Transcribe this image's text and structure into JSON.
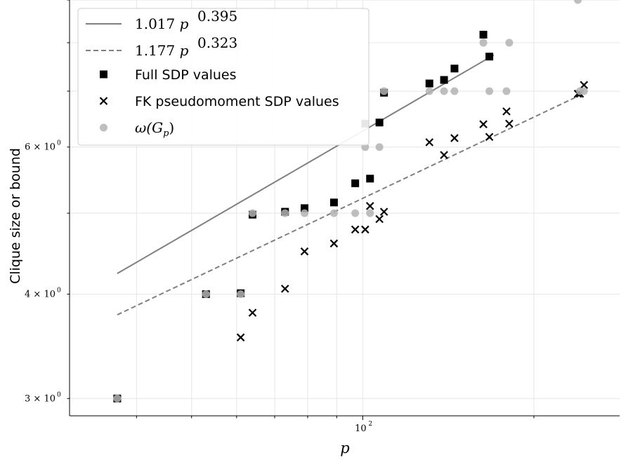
{
  "chart_data": {
    "type": "scatter",
    "xlabel": "p",
    "ylabel": "Clique size or bound",
    "x_scale": "log",
    "y_scale": "log",
    "xlim": [
      30.5,
      283
    ],
    "ylim": [
      2.86,
      9.0
    ],
    "grid": true,
    "legend_placement": "top-left",
    "x_ticks_major": [
      {
        "value": 100,
        "base": "10",
        "exp": "2"
      }
    ],
    "y_ticks_labeled": [
      {
        "value": 3,
        "coef": "3",
        "base": "10",
        "exp": "0"
      },
      {
        "value": 4,
        "coef": "4",
        "base": "10",
        "exp": "0"
      },
      {
        "value": 6,
        "coef": "6",
        "base": "10",
        "exp": "0"
      }
    ],
    "series": [
      {
        "name": "1.017 p^0.395",
        "legend_label": {
          "coef": "1.017",
          "var": "p",
          "exp": "0.395"
        },
        "kind": "line",
        "style": "solid",
        "color": "#808080",
        "a": 1.017,
        "b": 0.395,
        "x_range": [
          37,
          170
        ]
      },
      {
        "name": "1.177 p^0.323",
        "legend_label": {
          "coef": "1.177",
          "var": "p",
          "exp": "0.323"
        },
        "kind": "line",
        "style": "dashed",
        "color": "#808080",
        "a": 1.177,
        "b": 0.323,
        "x_range": [
          37,
          245
        ]
      },
      {
        "name": "Full SDP values",
        "legend_label": "Full SDP values",
        "kind": "marker",
        "marker": "square",
        "color": "#000000",
        "points": [
          {
            "x": 37,
            "y": 3.0
          },
          {
            "x": 53,
            "y": 4.0
          },
          {
            "x": 61,
            "y": 4.01
          },
          {
            "x": 64,
            "y": 4.98
          },
          {
            "x": 73,
            "y": 5.02
          },
          {
            "x": 79,
            "y": 5.07
          },
          {
            "x": 89,
            "y": 5.15
          },
          {
            "x": 97,
            "y": 5.43
          },
          {
            "x": 101,
            "y": 6.4
          },
          {
            "x": 103,
            "y": 5.5
          },
          {
            "x": 107,
            "y": 6.42
          },
          {
            "x": 109,
            "y": 6.97
          },
          {
            "x": 131,
            "y": 7.15
          },
          {
            "x": 139,
            "y": 7.22
          },
          {
            "x": 145,
            "y": 7.45
          },
          {
            "x": 163,
            "y": 8.18
          },
          {
            "x": 167,
            "y": 7.7
          }
        ]
      },
      {
        "name": "FK pseudomoment SDP values",
        "legend_label": "FK pseudomoment SDP values",
        "kind": "marker",
        "marker": "cross",
        "color": "#000000",
        "points": [
          {
            "x": 61,
            "y": 3.55
          },
          {
            "x": 64,
            "y": 3.8
          },
          {
            "x": 73,
            "y": 4.06
          },
          {
            "x": 79,
            "y": 4.5
          },
          {
            "x": 89,
            "y": 4.6
          },
          {
            "x": 97,
            "y": 4.78
          },
          {
            "x": 101,
            "y": 4.78
          },
          {
            "x": 103,
            "y": 5.1
          },
          {
            "x": 107,
            "y": 4.92
          },
          {
            "x": 109,
            "y": 5.02
          },
          {
            "x": 131,
            "y": 6.08
          },
          {
            "x": 139,
            "y": 5.87
          },
          {
            "x": 145,
            "y": 6.15
          },
          {
            "x": 163,
            "y": 6.39
          },
          {
            "x": 167,
            "y": 6.17
          },
          {
            "x": 179,
            "y": 6.62
          },
          {
            "x": 181,
            "y": 6.4
          },
          {
            "x": 239,
            "y": 6.95
          },
          {
            "x": 241,
            "y": 6.95
          },
          {
            "x": 245,
            "y": 7.12
          }
        ]
      },
      {
        "name": "ω(G_p)",
        "legend_label": {
          "base": "ω(G",
          "sub": "p",
          "tail": ")"
        },
        "kind": "marker",
        "marker": "circle",
        "color": "#b3b3b3",
        "points": [
          {
            "x": 37,
            "y": 3
          },
          {
            "x": 53,
            "y": 4
          },
          {
            "x": 61,
            "y": 4
          },
          {
            "x": 64,
            "y": 5
          },
          {
            "x": 73,
            "y": 5
          },
          {
            "x": 79,
            "y": 5
          },
          {
            "x": 89,
            "y": 5
          },
          {
            "x": 97,
            "y": 5
          },
          {
            "x": 101,
            "y": 6
          },
          {
            "x": 103,
            "y": 5
          },
          {
            "x": 107,
            "y": 6
          },
          {
            "x": 109,
            "y": 7
          },
          {
            "x": 131,
            "y": 7
          },
          {
            "x": 139,
            "y": 7
          },
          {
            "x": 145,
            "y": 7
          },
          {
            "x": 163,
            "y": 8
          },
          {
            "x": 167,
            "y": 7
          },
          {
            "x": 179,
            "y": 7
          },
          {
            "x": 181,
            "y": 8
          },
          {
            "x": 239,
            "y": 9
          },
          {
            "x": 241,
            "y": 7
          },
          {
            "x": 245,
            "y": 7
          }
        ]
      }
    ]
  }
}
